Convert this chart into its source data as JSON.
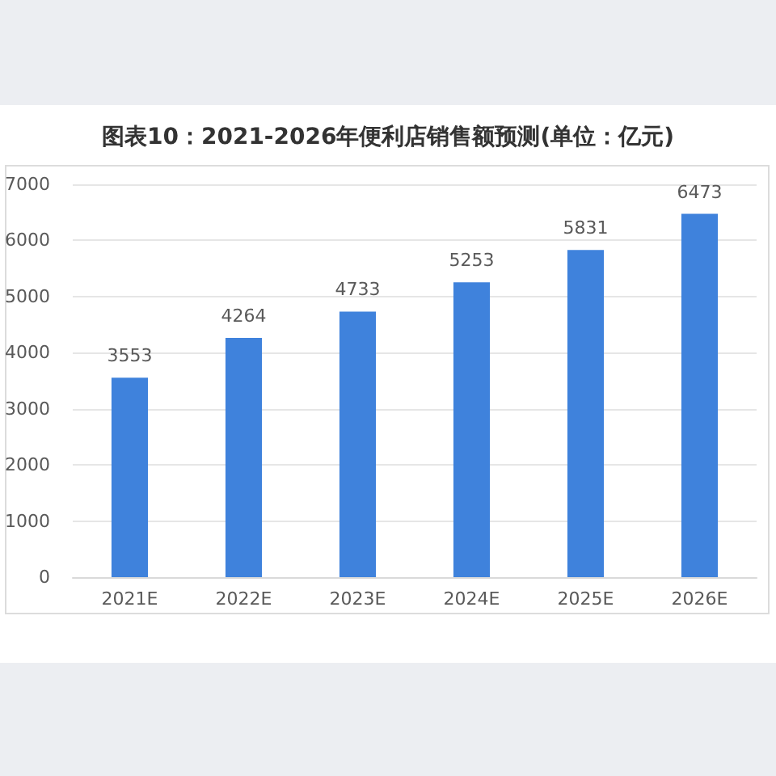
{
  "chart_data": {
    "type": "bar",
    "title": "图表10：2021-2026年便利店销售额预测(单位：亿元)",
    "categories": [
      "2021E",
      "2022E",
      "2023E",
      "2024E",
      "2025E",
      "2026E"
    ],
    "values": [
      3553,
      4264,
      4733,
      5253,
      5831,
      6473
    ],
    "color": "#3f82dc",
    "ylim": [
      0,
      7000
    ],
    "yticks": [
      0,
      1000,
      2000,
      3000,
      4000,
      5000,
      6000,
      7000
    ],
    "grid": "y",
    "data_labels": true
  }
}
